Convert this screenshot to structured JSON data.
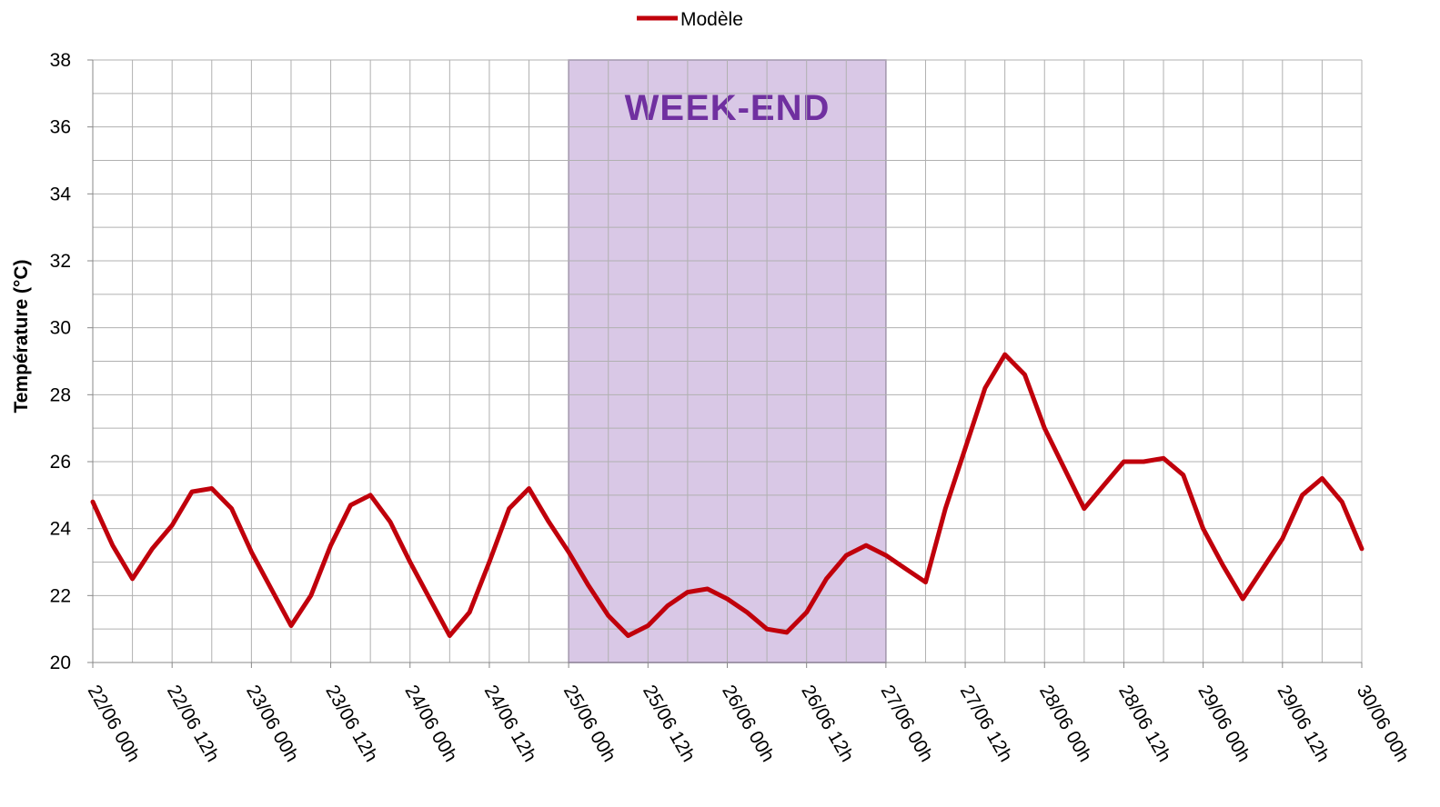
{
  "chart_data": {
    "type": "line",
    "y_label": "Température (°C)",
    "x": [
      "22/06 00h",
      "22/06 03h",
      "22/06 06h",
      "22/06 09h",
      "22/06 12h",
      "22/06 15h",
      "22/06 18h",
      "22/06 21h",
      "23/06 00h",
      "23/06 03h",
      "23/06 06h",
      "23/06 09h",
      "23/06 12h",
      "23/06 15h",
      "23/06 18h",
      "23/06 21h",
      "24/06 00h",
      "24/06 03h",
      "24/06 06h",
      "24/06 09h",
      "24/06 12h",
      "24/06 15h",
      "24/06 18h",
      "24/06 21h",
      "25/06 00h",
      "25/06 03h",
      "25/06 06h",
      "25/06 09h",
      "25/06 12h",
      "25/06 15h",
      "25/06 18h",
      "25/06 21h",
      "26/06 00h",
      "26/06 03h",
      "26/06 06h",
      "26/06 09h",
      "26/06 12h",
      "26/06 15h",
      "26/06 18h",
      "26/06 21h",
      "27/06 00h",
      "27/06 03h",
      "27/06 06h",
      "27/06 09h",
      "27/06 12h",
      "27/06 15h",
      "27/06 18h",
      "27/06 21h",
      "28/06 00h",
      "28/06 03h",
      "28/06 06h",
      "28/06 09h",
      "28/06 12h",
      "28/06 15h",
      "28/06 18h",
      "28/06 21h",
      "29/06 00h",
      "29/06 03h",
      "29/06 06h",
      "29/06 09h",
      "29/06 12h",
      "29/06 15h",
      "29/06 18h",
      "29/06 21h",
      "30/06 00h"
    ],
    "series": [
      {
        "name": "Modèle",
        "color": "#c0000b",
        "values": [
          24.8,
          23.5,
          22.5,
          23.4,
          24.1,
          25.1,
          25.2,
          24.6,
          23.3,
          22.2,
          21.1,
          22.0,
          23.5,
          24.7,
          25.0,
          24.2,
          23.0,
          21.9,
          20.8,
          21.5,
          23.0,
          24.6,
          25.2,
          24.2,
          23.3,
          22.3,
          21.4,
          20.8,
          21.1,
          21.7,
          22.1,
          22.2,
          21.9,
          21.5,
          21.0,
          20.9,
          21.5,
          22.5,
          23.2,
          23.5,
          23.2,
          22.8,
          22.4,
          24.6,
          26.4,
          28.2,
          29.2,
          28.6,
          27.0,
          25.8,
          24.6,
          25.3,
          26.0,
          26.0,
          26.1,
          25.6,
          24.0,
          22.9,
          21.9,
          22.8,
          23.7,
          25.0,
          25.5,
          24.8,
          23.4
        ]
      }
    ],
    "xticks": [
      "22/06 00h",
      "22/06 12h",
      "23/06 00h",
      "23/06 12h",
      "24/06 00h",
      "24/06 12h",
      "25/06 00h",
      "25/06 12h",
      "26/06 00h",
      "26/06 12h",
      "27/06 00h",
      "27/06 12h",
      "28/06 00h",
      "28/06 12h",
      "29/06 00h",
      "29/06 12h",
      "30/06 00h"
    ],
    "ylim": [
      20,
      38
    ],
    "yticks": [
      20,
      22,
      24,
      26,
      28,
      30,
      32,
      34,
      36,
      38
    ],
    "grid": true,
    "legend": "top",
    "shaded_region": {
      "from": "25/06 00h",
      "to": "27/06 00h",
      "label": "WEEK-END",
      "color": "#d9c8e6",
      "border": "#8a6aa8",
      "label_color": "#7030a0"
    }
  }
}
